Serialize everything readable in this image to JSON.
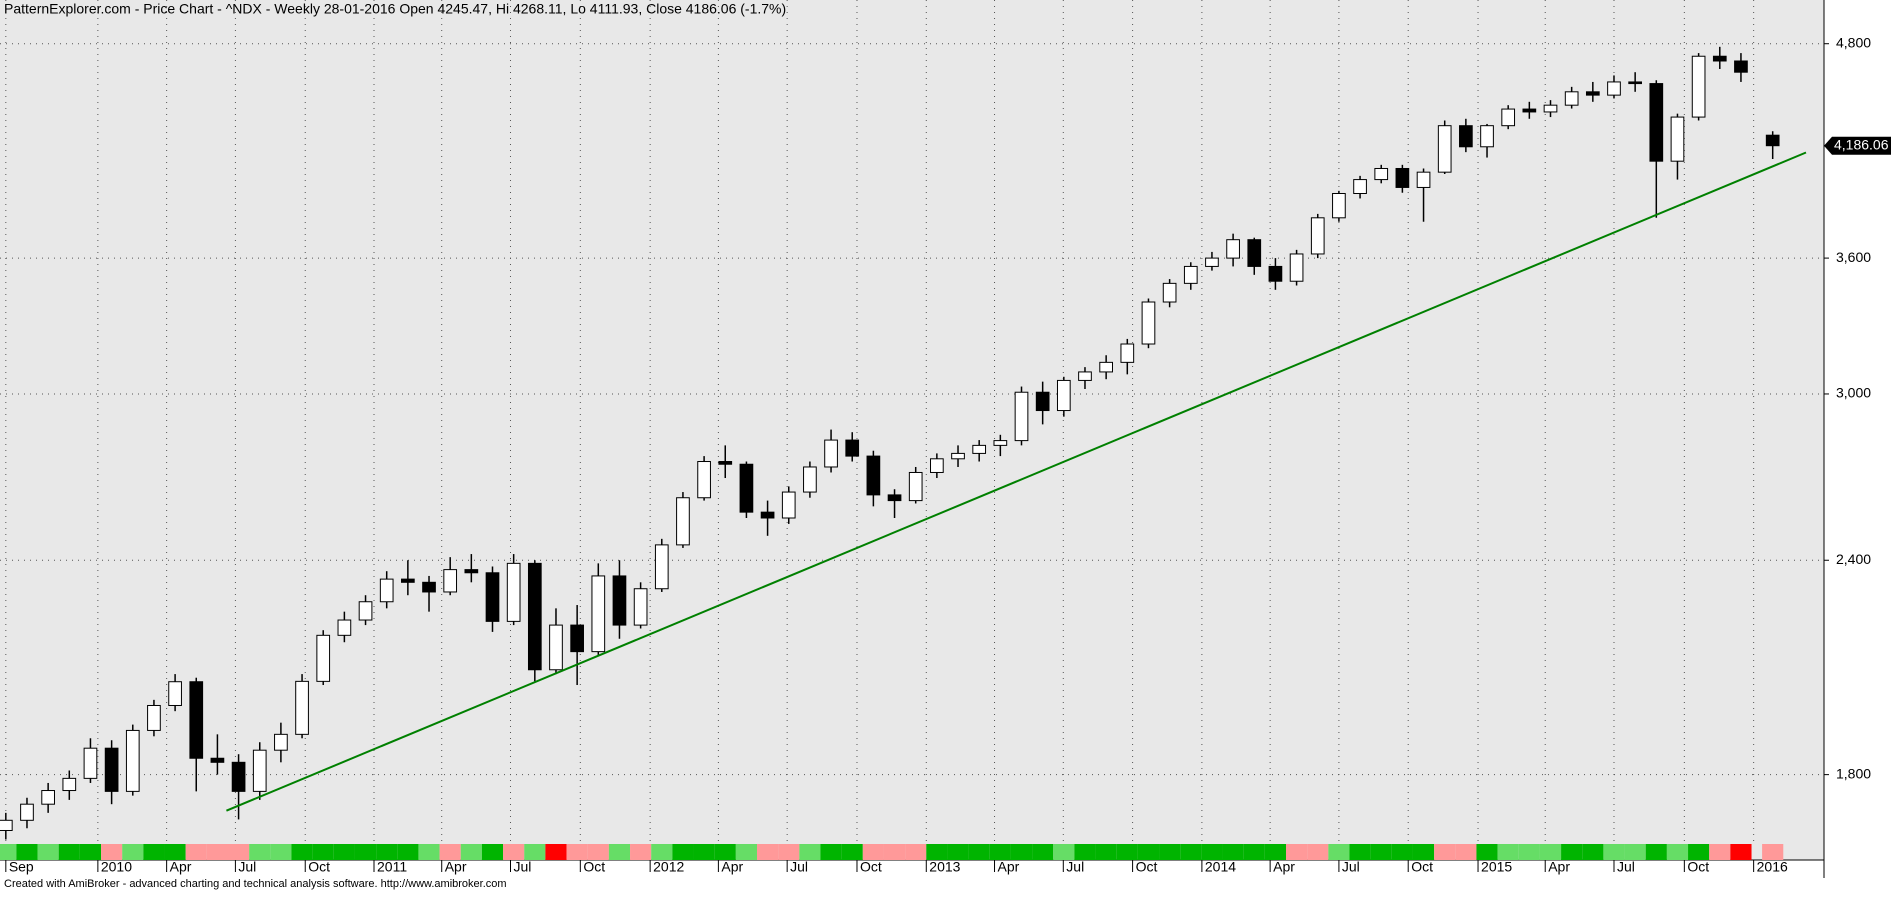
{
  "chart_data": {
    "type": "candlestick",
    "title": "PatternExplorer.com - Price Chart - ^NDX - Weekly 28-01-2016 Open 4245.47, Hi 4268.11, Lo 4111.93, Close 4186.06 (-1.7%)",
    "footer": "Created with AmiBroker - advanced charting and technical analysis software. http://www.amibroker.com",
    "log_scale": true,
    "grid": true,
    "xlim": [
      -1.1,
      343.7
    ],
    "ylim": [
      1640,
      5090
    ],
    "xticks": [
      {
        "value": 0,
        "label": "Sep"
      },
      {
        "value": 17.4,
        "label": "2010"
      },
      {
        "value": 30.4,
        "label": "Apr"
      },
      {
        "value": 43.4,
        "label": "Jul"
      },
      {
        "value": 56.6,
        "label": "Oct"
      },
      {
        "value": 69.6,
        "label": "2011"
      },
      {
        "value": 82.4,
        "label": "Apr"
      },
      {
        "value": 95.4,
        "label": "Jul"
      },
      {
        "value": 108.6,
        "label": "Oct"
      },
      {
        "value": 121.8,
        "label": "2012"
      },
      {
        "value": 134.7,
        "label": "Apr"
      },
      {
        "value": 147.7,
        "label": "Jul"
      },
      {
        "value": 160.9,
        "label": "Oct"
      },
      {
        "value": 174,
        "label": "2013"
      },
      {
        "value": 186.9,
        "label": "Apr"
      },
      {
        "value": 199.9,
        "label": "Jul"
      },
      {
        "value": 213,
        "label": "Oct"
      },
      {
        "value": 226.1,
        "label": "2014"
      },
      {
        "value": 239,
        "label": "Apr"
      },
      {
        "value": 252,
        "label": "Jul"
      },
      {
        "value": 265.1,
        "label": "Oct"
      },
      {
        "value": 278.3,
        "label": "2015"
      },
      {
        "value": 291,
        "label": "Apr"
      },
      {
        "value": 304,
        "label": "Jul"
      },
      {
        "value": 317.3,
        "label": "Oct"
      },
      {
        "value": 330.4,
        "label": "2016"
      }
    ],
    "yticks": [
      {
        "value": 1800,
        "label": "1,800"
      },
      {
        "value": 2400,
        "label": "2,400"
      },
      {
        "value": 3000,
        "label": "3,000"
      },
      {
        "value": 3600,
        "label": "3,600"
      },
      {
        "value": 4800,
        "label": "4,800"
      }
    ],
    "up_color": "#ffffff",
    "down_color": "#000000",
    "x": [
      0,
      4,
      8,
      12,
      16,
      20,
      24,
      28,
      32,
      36,
      40,
      44,
      48,
      52,
      56,
      60,
      64,
      68,
      72,
      76,
      80,
      84,
      88,
      92,
      96,
      100,
      104,
      108,
      112,
      116,
      120,
      124,
      128,
      132,
      136,
      140,
      144,
      148,
      152,
      156,
      160,
      164,
      168,
      172,
      176,
      180,
      184,
      188,
      192,
      196,
      200,
      204,
      208,
      212,
      216,
      220,
      224,
      228,
      232,
      236,
      240,
      244,
      248,
      252,
      256,
      260,
      264,
      268,
      272,
      276,
      280,
      284,
      288,
      292,
      296,
      300,
      304,
      308,
      312,
      316,
      320,
      324,
      328,
      334
    ],
    "open": [
      1670,
      1693,
      1730,
      1762,
      1791,
      1865,
      1760,
      1910,
      1975,
      2039,
      1840,
      1830,
      1760,
      1860,
      1900,
      2040,
      2170,
      2215,
      2270,
      2340,
      2330,
      2300,
      2370,
      2360,
      2211,
      2390,
      2072,
      2200,
      2123,
      2350,
      2200,
      2310,
      2450,
      2610,
      2740,
      2730,
      2560,
      2540,
      2630,
      2720,
      2820,
      2760,
      2620,
      2600,
      2700,
      2750,
      2770,
      2800,
      2818,
      3007,
      2934,
      3055,
      3090,
      3130,
      3208,
      3394,
      3480,
      3560,
      3600,
      3690,
      3560,
      3490,
      3620,
      3800,
      3926,
      4000,
      4060,
      3958,
      4040,
      4300,
      4180,
      4300,
      4397,
      4380,
      4420,
      4500,
      4480,
      4560,
      4550,
      4100,
      4350,
      4720,
      4690,
      4245.47
    ],
    "high": [
      1710,
      1745,
      1780,
      1810,
      1890,
      1885,
      1925,
      1990,
      2060,
      2050,
      1900,
      1850,
      1880,
      1930,
      2060,
      2185,
      2240,
      2290,
      2365,
      2400,
      2350,
      2410,
      2420,
      2380,
      2420,
      2400,
      2250,
      2260,
      2390,
      2400,
      2330,
      2470,
      2630,
      2760,
      2800,
      2740,
      2600,
      2650,
      2740,
      2860,
      2850,
      2780,
      2640,
      2720,
      2770,
      2800,
      2820,
      2840,
      3030,
      3050,
      3070,
      3110,
      3160,
      3230,
      3410,
      3500,
      3580,
      3630,
      3720,
      3700,
      3600,
      3640,
      3820,
      3940,
      4020,
      4080,
      4080,
      4060,
      4330,
      4340,
      4310,
      4420,
      4440,
      4450,
      4530,
      4560,
      4600,
      4620,
      4570,
      4370,
      4740,
      4780,
      4740,
      4268.11
    ],
    "low": [
      1650,
      1675,
      1710,
      1740,
      1780,
      1730,
      1750,
      1895,
      1960,
      1760,
      1800,
      1695,
      1740,
      1830,
      1890,
      2030,
      2150,
      2200,
      2250,
      2290,
      2240,
      2290,
      2330,
      2180,
      2200,
      2040,
      2060,
      2030,
      2110,
      2160,
      2190,
      2300,
      2440,
      2600,
      2680,
      2540,
      2480,
      2520,
      2610,
      2700,
      2740,
      2580,
      2540,
      2590,
      2680,
      2720,
      2740,
      2760,
      2800,
      2880,
      2910,
      3020,
      3060,
      3080,
      3190,
      3370,
      3450,
      3540,
      3560,
      3520,
      3450,
      3470,
      3600,
      3780,
      3900,
      3980,
      3930,
      3780,
      4030,
      4150,
      4120,
      4280,
      4340,
      4350,
      4400,
      4440,
      4460,
      4500,
      3800,
      4000,
      4330,
      4640,
      4560,
      4111.93
    ],
    "close": [
      1693,
      1730,
      1762,
      1791,
      1865,
      1760,
      1910,
      1975,
      2039,
      1840,
      1830,
      1760,
      1860,
      1900,
      2040,
      2170,
      2215,
      2270,
      2340,
      2330,
      2300,
      2370,
      2360,
      2211,
      2390,
      2072,
      2200,
      2123,
      2350,
      2200,
      2310,
      2450,
      2610,
      2740,
      2730,
      2560,
      2540,
      2630,
      2720,
      2820,
      2760,
      2620,
      2600,
      2700,
      2750,
      2770,
      2800,
      2818,
      3007,
      2934,
      3055,
      3090,
      3130,
      3208,
      3394,
      3480,
      3560,
      3600,
      3690,
      3560,
      3490,
      3620,
      3800,
      3926,
      4000,
      4060,
      3958,
      4040,
      4300,
      4180,
      4300,
      4397,
      4380,
      4420,
      4500,
      4480,
      4560,
      4550,
      4100,
      4350,
      4720,
      4690,
      4620,
      4186.06
    ],
    "trendline": {
      "x": [
        41.7,
        340.3
      ],
      "y": [
        1715,
        4148
      ],
      "color": "#008000"
    },
    "last_label": {
      "value": 4186.06,
      "label": "4,186.06"
    },
    "strip_palette": {
      "g": "#00b400",
      "l": "#66dd66",
      "p": "#ff9999",
      "r": "#ff0000"
    },
    "strip": "lglggplggpppllgggggglplgplrpplplggglpplggpppgggggglggggggggggpplggggppglllggllglgprpglpr"
  }
}
